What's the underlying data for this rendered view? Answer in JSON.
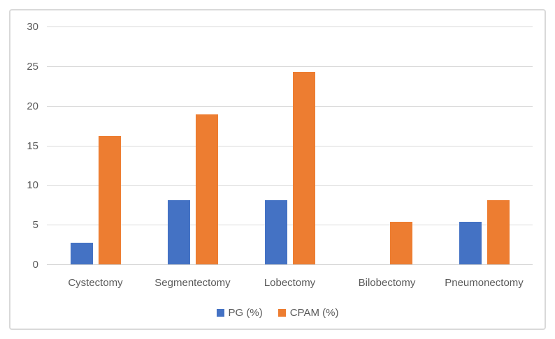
{
  "chart_data": {
    "type": "bar",
    "title": "",
    "categories": [
      "Cystectomy",
      "Segmentectomy",
      "Lobectomy",
      "Bilobectomy",
      "Pneumonectomy"
    ],
    "series": [
      {
        "name": "PG (%)",
        "color": "#4472C4",
        "values": [
          2.7,
          8.1,
          8.1,
          0,
          5.4
        ]
      },
      {
        "name": "CPAM (%)",
        "color": "#ED7D31",
        "values": [
          16.2,
          18.9,
          24.3,
          5.4,
          8.1
        ]
      }
    ],
    "xlabel": "",
    "ylabel": "",
    "ylim": [
      0,
      30
    ],
    "yticks": [
      0,
      5,
      10,
      15,
      20,
      25,
      30
    ],
    "grid": true,
    "legend_position": "bottom",
    "colors": {
      "gridline": "#D9D9D9",
      "axis_line": "#D0D0D0",
      "axis_text": "#595959",
      "frame_border": "#D9D9D9",
      "background": "#FFFFFF"
    }
  }
}
